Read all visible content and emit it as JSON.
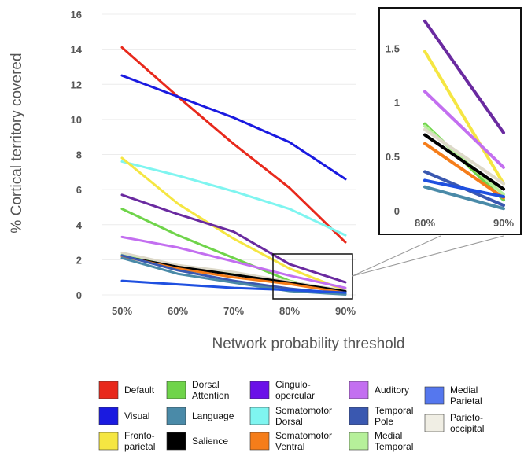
{
  "chart_data": [
    {
      "type": "line",
      "xlabel": "Network probability threshold",
      "ylabel": "% Cortical territory covered",
      "x": [
        "50%",
        "60%",
        "70%",
        "80%",
        "90%"
      ],
      "ylim": [
        0,
        16
      ],
      "yticks": [
        "0",
        "2",
        "4",
        "6",
        "8",
        "10",
        "12",
        "14",
        "16"
      ],
      "grid": true,
      "series": [
        {
          "name": "Default",
          "color": "#e8291c",
          "values": [
            14.1,
            11.3,
            8.6,
            6.1,
            3.0
          ]
        },
        {
          "name": "Visual",
          "color": "#1a1ae0",
          "values": [
            12.5,
            11.3,
            10.1,
            8.7,
            6.6
          ]
        },
        {
          "name": "Somatomotor Dorsal",
          "color": "#7ff5f0",
          "values": [
            7.6,
            6.8,
            5.9,
            4.9,
            3.4
          ]
        },
        {
          "name": "Fronto-parietal",
          "color": "#f5e642",
          "values": [
            7.8,
            5.2,
            3.2,
            1.5,
            0.25
          ]
        },
        {
          "name": "Cingulo-opercular",
          "color": "#6a2aa0",
          "values": [
            5.7,
            4.6,
            3.6,
            1.75,
            0.72
          ]
        },
        {
          "name": "Dorsal Attention",
          "color": "#6fd44a",
          "values": [
            4.9,
            3.4,
            2.1,
            0.8,
            0.1
          ]
        },
        {
          "name": "Auditory",
          "color": "#c36ff0",
          "values": [
            3.3,
            2.7,
            1.9,
            1.1,
            0.4
          ]
        },
        {
          "name": "Medial Temporal",
          "color": "#b6f09a",
          "values": [
            2.3,
            1.6,
            1.2,
            0.78,
            0.15
          ]
        },
        {
          "name": "Parieto-occipital",
          "color": "#ddd9c9",
          "values": [
            2.4,
            1.7,
            1.3,
            0.75,
            0.25
          ]
        },
        {
          "name": "Salience",
          "color": "#000000",
          "values": [
            2.2,
            1.6,
            1.15,
            0.7,
            0.2
          ]
        },
        {
          "name": "Somatomotor Ventral",
          "color": "#f57d1a",
          "values": [
            2.2,
            1.5,
            1.0,
            0.62,
            0.12
          ]
        },
        {
          "name": "Temporal Pole",
          "color": "#3a58b0",
          "values": [
            2.25,
            1.4,
            0.8,
            0.36,
            0.05
          ]
        },
        {
          "name": "Language",
          "color": "#4a8aa8",
          "values": [
            2.1,
            1.2,
            0.7,
            0.22,
            0.02
          ]
        },
        {
          "name": "Medial Parietal",
          "color": "#1f50e0",
          "values": [
            0.8,
            0.6,
            0.4,
            0.28,
            0.13
          ]
        }
      ]
    },
    {
      "type": "line",
      "x": [
        "80%",
        "90%"
      ],
      "ylim": [
        0,
        1.8
      ],
      "yticks": [
        "0",
        "0.5",
        "1",
        "1.5"
      ],
      "series": [
        {
          "color": "#6a2aa0",
          "values": [
            1.75,
            0.72
          ]
        },
        {
          "color": "#f5e642",
          "values": [
            1.47,
            0.25
          ]
        },
        {
          "color": "#c36ff0",
          "values": [
            1.1,
            0.4
          ]
        },
        {
          "color": "#6fd44a",
          "values": [
            0.8,
            0.1
          ]
        },
        {
          "color": "#b6f09a",
          "values": [
            0.78,
            0.15
          ]
        },
        {
          "color": "#ddd9c9",
          "values": [
            0.75,
            0.25
          ]
        },
        {
          "color": "#000000",
          "values": [
            0.7,
            0.2
          ]
        },
        {
          "color": "#f57d1a",
          "values": [
            0.62,
            0.12
          ]
        },
        {
          "color": "#3a58b0",
          "values": [
            0.36,
            0.05
          ]
        },
        {
          "color": "#1f50e0",
          "values": [
            0.28,
            0.13
          ]
        },
        {
          "color": "#4a8aa8",
          "values": [
            0.22,
            0.02
          ]
        }
      ]
    }
  ],
  "legend": [
    {
      "label": "Default",
      "color": "#e8291c"
    },
    {
      "label": "Visual",
      "color": "#1a1ae0"
    },
    {
      "label": "Fronto-\nparietal",
      "color": "#f5e642"
    },
    {
      "label": "Dorsal\nAttention",
      "color": "#6fd44a"
    },
    {
      "label": "Language",
      "color": "#4a8aa8"
    },
    {
      "label": "Salience",
      "color": "#000000"
    },
    {
      "label": "Cingulo-\nopercular",
      "color": "#6a10e8"
    },
    {
      "label": "Somatomotor\nDorsal",
      "color": "#7ff5f0"
    },
    {
      "label": "Somatomotor\nVentral",
      "color": "#f57d1a"
    },
    {
      "label": "Auditory",
      "color": "#c36ff0"
    },
    {
      "label": "Temporal\nPole",
      "color": "#3a58b0"
    },
    {
      "label": "Medial\nTemporal",
      "color": "#b6f09a"
    },
    {
      "label": "Medial\nParietal",
      "color": "#5577ee"
    },
    {
      "label": "Parieto-\noccipital",
      "color": "#f0eee4"
    }
  ]
}
